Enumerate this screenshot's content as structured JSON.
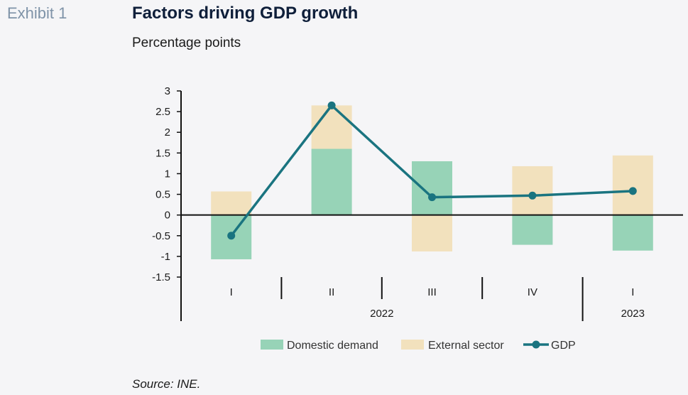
{
  "header": {
    "exhibit": "Exhibit 1",
    "title": "Factors driving GDP growth",
    "subtitle": "Percentage points"
  },
  "footer": {
    "source": "Source: INE."
  },
  "colors": {
    "domestic": "#97d3b7",
    "external": "#f2e1bd",
    "gdp": "#1a7480",
    "axis": "#111111"
  },
  "chart_data": {
    "type": "bar",
    "stacked": true,
    "categories": [
      "I",
      "II",
      "III",
      "IV",
      "I"
    ],
    "years": [
      {
        "label": "2022",
        "span": [
          0,
          3
        ]
      },
      {
        "label": "2023",
        "span": [
          4,
          4
        ]
      }
    ],
    "series": [
      {
        "name": "Domestic demand",
        "kind": "bar",
        "values": [
          -1.07,
          1.6,
          1.3,
          -0.72,
          -0.86
        ]
      },
      {
        "name": "External sector",
        "kind": "bar",
        "values": [
          0.57,
          1.05,
          -0.88,
          1.18,
          1.44
        ]
      },
      {
        "name": "GDP",
        "kind": "line",
        "values": [
          -0.5,
          2.65,
          0.43,
          0.47,
          0.58
        ]
      }
    ],
    "ylim": [
      -1.5,
      3
    ],
    "yticks": [
      3,
      2.5,
      2,
      1.5,
      1,
      0.5,
      0,
      -0.5,
      -1,
      -1.5
    ],
    "ytick_labels": [
      "3",
      "2.5",
      "2",
      "1.5",
      "1",
      "0.5",
      "0",
      "-0.5",
      "-1",
      "-1.5"
    ],
    "legend": "bottom",
    "grid": false
  }
}
